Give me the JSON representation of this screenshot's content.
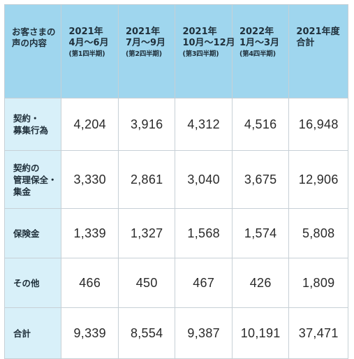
{
  "header": {
    "corner_lines": [
      "お客さまの",
      "声の内容"
    ],
    "columns": [
      {
        "lines": [
          "2021年",
          "4月～6月"
        ],
        "sub": "(第1四半期)"
      },
      {
        "lines": [
          "2021年",
          "7月～9月"
        ],
        "sub": "(第2四半期)"
      },
      {
        "lines": [
          "2021年",
          "10月～12月"
        ],
        "sub": "(第3四半期)"
      },
      {
        "lines": [
          "2022年",
          "1月～3月"
        ],
        "sub": "(第4四半期)"
      },
      {
        "lines": [
          "2021年度",
          "合計"
        ],
        "sub": ""
      }
    ]
  },
  "rows": [
    {
      "label_lines": [
        "契約・",
        "募集行為"
      ],
      "values": [
        "4,204",
        "3,916",
        "4,312",
        "4,516",
        "16,948"
      ]
    },
    {
      "label_lines": [
        "契約の",
        "管理保全・",
        "集金"
      ],
      "values": [
        "3,330",
        "2,861",
        "3,040",
        "3,675",
        "12,906"
      ]
    },
    {
      "label_lines": [
        "保険金"
      ],
      "values": [
        "1,339",
        "1,327",
        "1,568",
        "1,574",
        "5,808"
      ]
    },
    {
      "label_lines": [
        "その他"
      ],
      "values": [
        "466",
        "450",
        "467",
        "426",
        "1,809"
      ]
    },
    {
      "label_lines": [
        "合計"
      ],
      "values": [
        "9,339",
        "8,554",
        "9,387",
        "10,191",
        "37,471"
      ]
    }
  ],
  "colors": {
    "header_bg": "#9fd6ee",
    "label_bg": "#d8f0f9",
    "border": "#c7d0d6"
  }
}
